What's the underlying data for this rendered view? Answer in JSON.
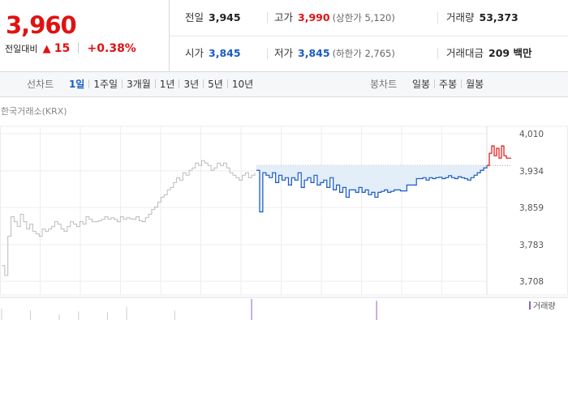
{
  "quote": {
    "price": "3,960",
    "change_label": "전일대비",
    "change_arrow": "▲",
    "change_value": "15",
    "change_pct": "+0.38%",
    "prev_label": "전일",
    "prev_value": "3,945",
    "high_label": "고가",
    "high_value": "3,990",
    "upper_limit": "(상한가 5,120)",
    "volume_label": "거래량",
    "volume_value": "53,373",
    "open_label": "시가",
    "open_value": "3,845",
    "low_label": "저가",
    "low_value": "3,845",
    "lower_limit": "(하한가 2,765)",
    "amount_label": "거래대금",
    "amount_value": "209 백만"
  },
  "toolbar": {
    "line_title": "선차트",
    "line_periods": [
      "1일",
      "1주일",
      "3개월",
      "1년",
      "3년",
      "5년",
      "10년"
    ],
    "line_active": "1일",
    "candle_title": "봉차트",
    "candle_periods": [
      "일봉",
      "주봉",
      "월봉"
    ]
  },
  "colors": {
    "up": "#e01212",
    "down": "#1a5bc4",
    "fill": "#e3eef9",
    "prev_line": "#bbbbbb",
    "volume": "#8a63c8"
  },
  "chart_data": {
    "type": "line",
    "source_label": "한국거래소(KRX)",
    "ylim": [
      3690,
      4025
    ],
    "ytick_labels": [
      "4,010",
      "3,934",
      "3,859",
      "3,783",
      "3,708"
    ],
    "ytick_values": [
      4010,
      3934,
      3859,
      3783,
      3708
    ],
    "prev_close": 3945,
    "legend": "거래량",
    "series": [
      {
        "name": "prev_day",
        "values": [
          3740,
          3720,
          3800,
          3840,
          3830,
          3820,
          3845,
          3830,
          3815,
          3825,
          3810,
          3805,
          3800,
          3815,
          3810,
          3815,
          3820,
          3830,
          3825,
          3815,
          3810,
          3820,
          3830,
          3825,
          3820,
          3830,
          3825,
          3840,
          3835,
          3830,
          3830,
          3832,
          3835,
          3840,
          3835,
          3838,
          3835,
          3830,
          3840,
          3835,
          3838,
          3836,
          3835,
          3840,
          3832,
          3830,
          3838,
          3845,
          3855,
          3860,
          3870,
          3880,
          3885,
          3895,
          3900,
          3910,
          3920,
          3915,
          3930,
          3925,
          3935,
          3940,
          3950,
          3945,
          3955,
          3950,
          3945,
          3935,
          3940,
          3950,
          3945,
          3950,
          3940,
          3930,
          3925,
          3920,
          3915,
          3925,
          3930,
          3920,
          3925,
          3930
        ]
      },
      {
        "name": "today_below",
        "values": [
          3935,
          3850,
          3930,
          3925,
          3920,
          3930,
          3910,
          3925,
          3915,
          3920,
          3905,
          3920,
          3915,
          3930,
          3900,
          3915,
          3920,
          3910,
          3925,
          3905,
          3910,
          3915,
          3900,
          3920,
          3895,
          3905,
          3890,
          3900,
          3880,
          3895,
          3895,
          3890,
          3900,
          3890,
          3895,
          3885,
          3890,
          3880,
          3890,
          3892,
          3895,
          3890,
          3892,
          3895,
          3895,
          3893,
          3893,
          3905,
          3905,
          3905,
          3918,
          3918,
          3920,
          3915,
          3920,
          3918,
          3920,
          3921,
          3918,
          3920,
          3924,
          3920,
          3918,
          3922,
          3920,
          3918,
          3915,
          3920,
          3925,
          3930,
          3935,
          3940,
          3945
        ]
      },
      {
        "name": "today_above",
        "values": [
          3945,
          3970,
          3985,
          3965,
          3980,
          3960,
          3985,
          3965,
          3960,
          3960,
          3960
        ]
      }
    ],
    "volume": {
      "name": "거래량",
      "values": [
        12,
        0,
        0,
        10,
        0,
        0,
        6,
        0,
        9,
        0,
        0,
        8,
        0,
        14,
        0,
        0,
        0,
        0,
        10,
        0,
        0,
        0,
        0,
        0,
        0,
        0,
        22,
        0,
        0,
        0,
        0,
        0,
        0,
        0,
        0,
        0,
        0,
        0,
        0,
        20,
        0,
        0,
        0,
        0,
        0,
        0,
        0,
        0,
        0,
        0,
        0,
        0,
        0,
        0
      ]
    }
  }
}
